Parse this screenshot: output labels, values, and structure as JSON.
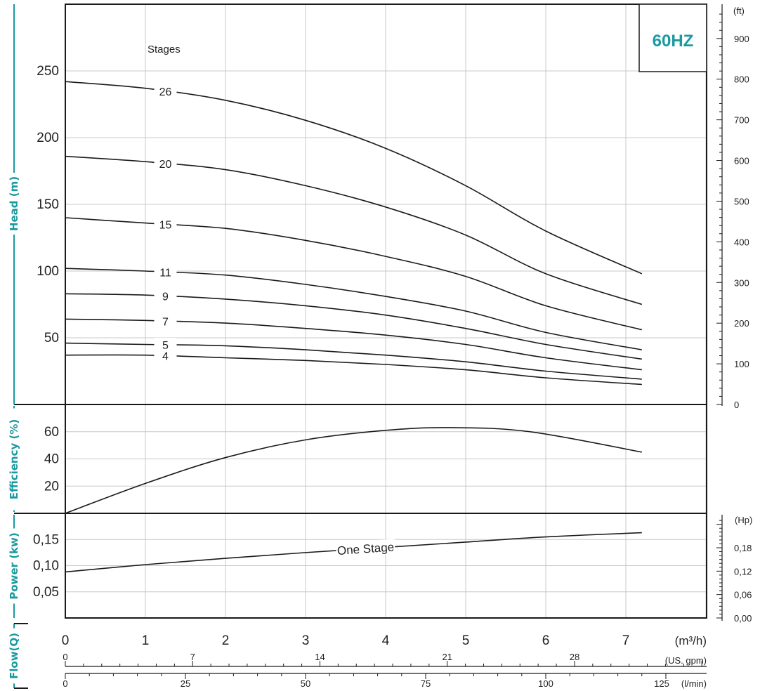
{
  "chart_data": {
    "type": "line",
    "badge": "60HZ",
    "badge_color": "#1a9aa0",
    "title_color": "#1a9aa0",
    "x": {
      "label": "Flow(Q)",
      "range": [
        0,
        7.7
      ],
      "ticks": [
        0,
        1,
        2,
        3,
        4,
        5,
        6,
        7
      ],
      "unit": "(m³/h)",
      "gpm_ticks": [
        0,
        7,
        14,
        21,
        28
      ],
      "gpm_unit": "(US. gpm)",
      "lmin_ticks": [
        0,
        25,
        50,
        75,
        100,
        125
      ],
      "lmin_unit": "(l/min)"
    },
    "head": {
      "ylabel": "Head (m)",
      "ylim": [
        0,
        300
      ],
      "ticks": [
        50,
        100,
        150,
        200,
        250
      ],
      "ft_ticks": [
        0,
        100,
        200,
        300,
        400,
        500,
        600,
        700,
        800,
        900
      ],
      "ft_unit": "(ft)",
      "stages_label": "Stages",
      "flow": [
        0,
        1,
        2,
        3,
        4,
        5,
        6,
        7.2
      ],
      "series": [
        {
          "name": "26",
          "values": [
            242,
            237,
            228,
            213,
            192,
            164,
            130,
            98
          ]
        },
        {
          "name": "20",
          "values": [
            186,
            182,
            176,
            164,
            148,
            127,
            98,
            75
          ]
        },
        {
          "name": "15",
          "values": [
            140,
            136,
            132,
            123,
            111,
            96,
            74,
            56
          ]
        },
        {
          "name": "11",
          "values": [
            102,
            100,
            97,
            90,
            81,
            70,
            54,
            41
          ]
        },
        {
          "name": "9",
          "values": [
            83,
            82,
            79,
            74,
            67,
            57,
            45,
            34
          ]
        },
        {
          "name": "7",
          "values": [
            64,
            63,
            61,
            57,
            52,
            45,
            35,
            26
          ]
        },
        {
          "name": "5",
          "values": [
            46,
            45,
            44,
            41,
            37,
            32,
            25,
            19
          ]
        },
        {
          "name": "4",
          "values": [
            37,
            37,
            35,
            33,
            30,
            26,
            20,
            15
          ]
        }
      ],
      "label_x": 1.25
    },
    "efficiency": {
      "ylabel": "Efficiency (%)",
      "ylim": [
        0,
        80
      ],
      "ticks": [
        20,
        40,
        60
      ],
      "x": [
        0,
        1,
        2,
        3,
        4,
        4.8,
        5.8,
        7.2
      ],
      "values": [
        0,
        22,
        41,
        54,
        61,
        63,
        60,
        45
      ]
    },
    "power": {
      "ylabel": "Power (kw)",
      "ylim": [
        0,
        0.2
      ],
      "ticks": [
        0.05,
        0.1,
        0.15
      ],
      "tick_labels": [
        "0,05",
        "0,10",
        "0,15"
      ],
      "hp_ticks": [
        0.0,
        0.06,
        0.12,
        0.18
      ],
      "hp_labels": [
        "0,00",
        "0,06",
        "0,12",
        "0,18"
      ],
      "hp_unit": "(Hp)",
      "x": [
        0,
        1,
        2,
        3,
        4,
        5,
        6,
        7.2
      ],
      "values": [
        0.088,
        0.102,
        0.114,
        0.125,
        0.135,
        0.145,
        0.155,
        0.163
      ],
      "series_label": "One Stage"
    }
  }
}
